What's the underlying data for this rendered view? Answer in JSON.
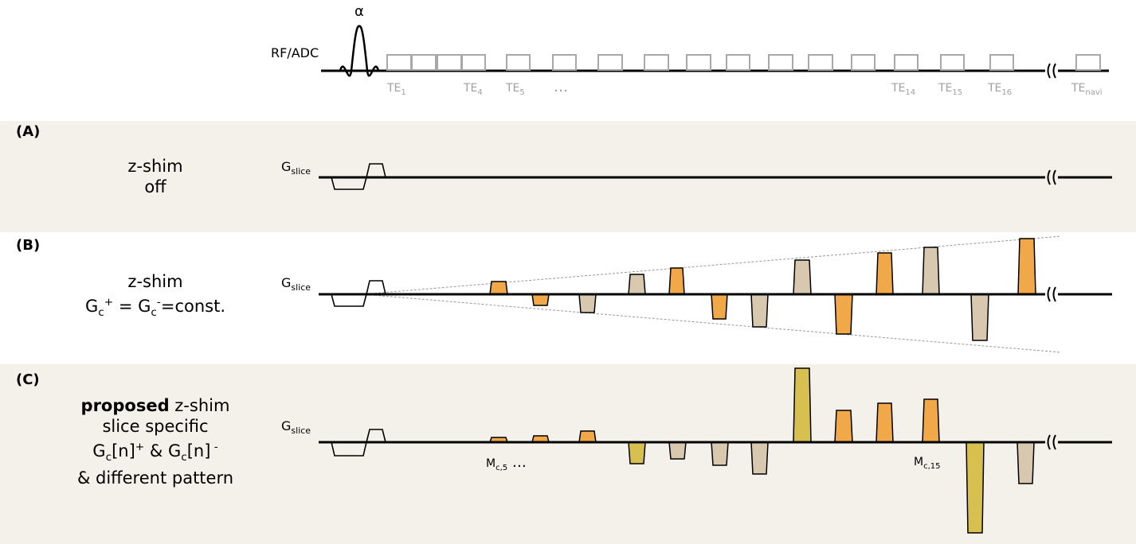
{
  "top": {
    "rf_label": "RF/ADC",
    "flip_angle": "α",
    "echo_labels": [
      {
        "base": "TE",
        "sub": "1"
      },
      {
        "base": "TE",
        "sub": "4"
      },
      {
        "base": "TE",
        "sub": "5"
      },
      {
        "base": "TE",
        "sub": "14"
      },
      {
        "base": "TE",
        "sub": "15"
      },
      {
        "base": "TE",
        "sub": "16"
      },
      {
        "base": "TE",
        "sub": "navi"
      }
    ],
    "ellipsis": "…"
  },
  "panels": [
    {
      "label": "(A)",
      "lines": [
        "z-shim",
        "off"
      ],
      "axis": {
        "base": "G",
        "sub": "slice"
      }
    },
    {
      "label": "(B)",
      "line1": "z-shim",
      "line2": {
        "g1": "G",
        "s1": "c",
        "p1": "+",
        "mid": " = ",
        "g2": "G",
        "s2": "c",
        "p2": "-",
        "tail": "=const."
      },
      "axis": {
        "base": "G",
        "sub": "slice"
      }
    },
    {
      "label": "(C)",
      "line1": {
        "bold": "proposed",
        "rest": " z-shim"
      },
      "line2": "slice specific",
      "line3": {
        "g1": "G",
        "s1": "c",
        "a1": "[n]",
        "p1": "+",
        "mid": " & ",
        "g2": "G",
        "s2": "c",
        "a2": "[n]",
        "p2": " -"
      },
      "line4": "& different pattern",
      "axis": {
        "base": "G",
        "sub": "slice"
      },
      "moment_labels": [
        {
          "base": "M",
          "sub": "c,5",
          "suffix": " …"
        },
        {
          "base": "M",
          "sub": "c,15",
          "suffix": ""
        }
      ]
    }
  ],
  "colors": {
    "band": "#f4f0ea",
    "orange": "#f0a848",
    "tan": "#d8c8b0",
    "olive": "#d8c050",
    "adc": "#a8a8a8",
    "line": "#000000"
  }
}
